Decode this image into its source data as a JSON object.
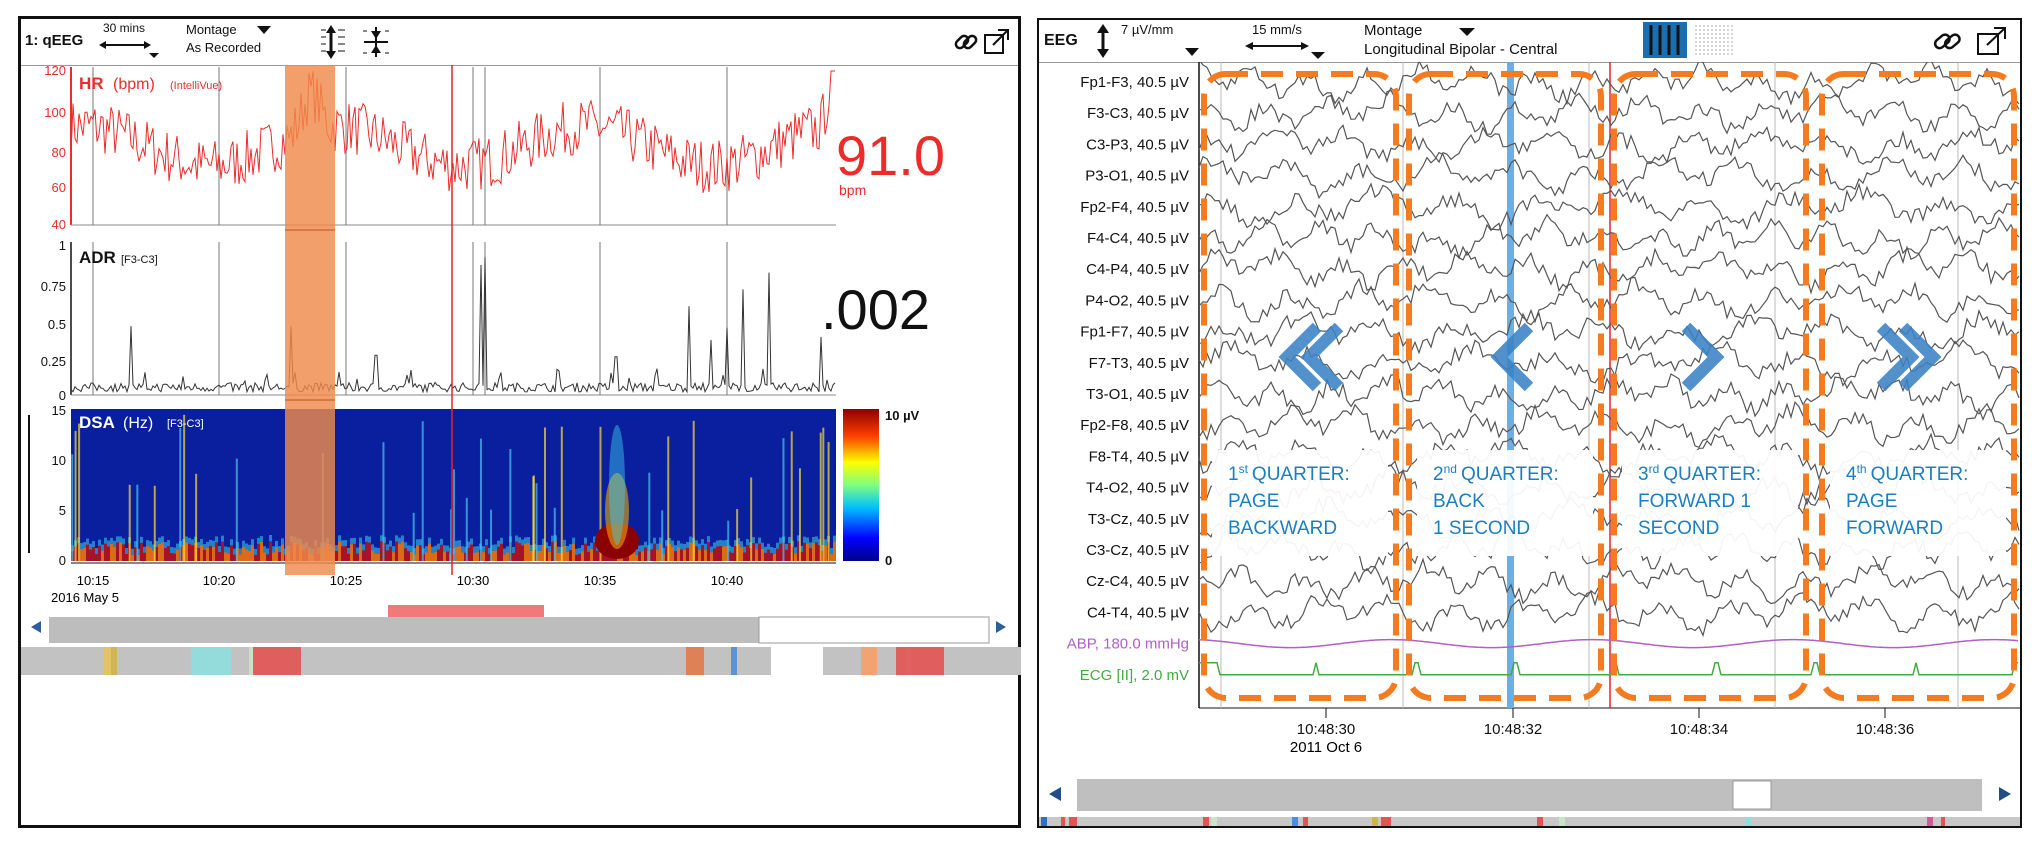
{
  "qeeg": {
    "toolbar": {
      "title": "1: qEEG",
      "time_scale": "30 mins",
      "montage_label": "Montage",
      "montage_value": "As Recorded"
    },
    "hr": {
      "label": "HR",
      "unit": "(bpm)",
      "source": "(IntelliVue)",
      "value": "91.0",
      "value_unit": "bpm",
      "y_ticks": [
        "120",
        "100",
        "80",
        "60",
        "40"
      ],
      "color": "#ee2b2b"
    },
    "adr": {
      "label": "ADR",
      "channel": "[F3-C3]",
      "value": ".002",
      "y_ticks": [
        "1",
        "0.75",
        "0.5",
        "0.25",
        "0"
      ]
    },
    "dsa": {
      "label": "DSA",
      "unit": "(Hz)",
      "channel": "[F3-C3]",
      "y_ticks": [
        "15",
        "10",
        "5",
        "0"
      ],
      "colorbar_max": "10 µV",
      "colorbar_min": "0"
    },
    "time_axis": {
      "ticks": [
        "10:15",
        "10:20",
        "10:25",
        "10:30",
        "10:35",
        "10:40"
      ],
      "date": "2016 May 5"
    },
    "highlight_color": "#f08a4b"
  },
  "eeg": {
    "toolbar": {
      "title": "EEG",
      "sensitivity": "7 µV/mm",
      "speed": "15 mm/s",
      "montage_label": "Montage",
      "montage_value": "Longitudinal Bipolar - Central"
    },
    "channels": [
      "Fp1-F3, 40.5 µV",
      "F3-C3, 40.5 µV",
      "C3-P3, 40.5 µV",
      "P3-O1, 40.5 µV",
      "Fp2-F4, 40.5 µV",
      "F4-C4, 40.5 µV",
      "C4-P4, 40.5 µV",
      "P4-O2, 40.5 µV",
      "Fp1-F7, 40.5 µV",
      "F7-T3, 40.5 µV",
      "T3-O1, 40.5 µV",
      "Fp2-F8, 40.5 µV",
      "F8-T4, 40.5 µV",
      "T4-O2, 40.5 µV",
      "T3-Cz, 40.5 µV",
      "C3-Cz, 40.5 µV",
      "Cz-C4, 40.5 µV",
      "C4-T4, 40.5 µV"
    ],
    "abp_label": "ABP, 180.0 mmHg",
    "ecg_label": "ECG [II], 2.0 mV",
    "abp_color": "#b05fc7",
    "ecg_color": "#3fae3f",
    "time_axis": {
      "ticks": [
        "10:48:30",
        "10:48:32",
        "10:48:34",
        "10:48:36"
      ],
      "date": "2011 Oct 6"
    },
    "quarters": [
      {
        "ordinal": "1",
        "suffix": "st",
        "title": "QUARTER:",
        "line2": "PAGE",
        "line3": "BACKWARD",
        "arrow": "«"
      },
      {
        "ordinal": "2",
        "suffix": "nd",
        "title": "QUARTER:",
        "line2": "BACK",
        "line3": "1 SECOND",
        "arrow": "‹"
      },
      {
        "ordinal": "3",
        "suffix": "rd",
        "title": "QUARTER:",
        "line2": "FORWARD 1",
        "line3": "SECOND",
        "arrow": "›"
      },
      {
        "ordinal": "4",
        "suffix": "th",
        "title": "QUARTER:",
        "line2": "PAGE",
        "line3": "FORWARD",
        "arrow": "»"
      }
    ],
    "quarter_color": "#1a7fc1",
    "dash_color": "#f47b20"
  },
  "icons": {
    "link": "link-icon",
    "popout": "popout-icon",
    "scroll_left": "scroll-left-arrow-icon",
    "scroll_right": "scroll-right-arrow-icon"
  }
}
